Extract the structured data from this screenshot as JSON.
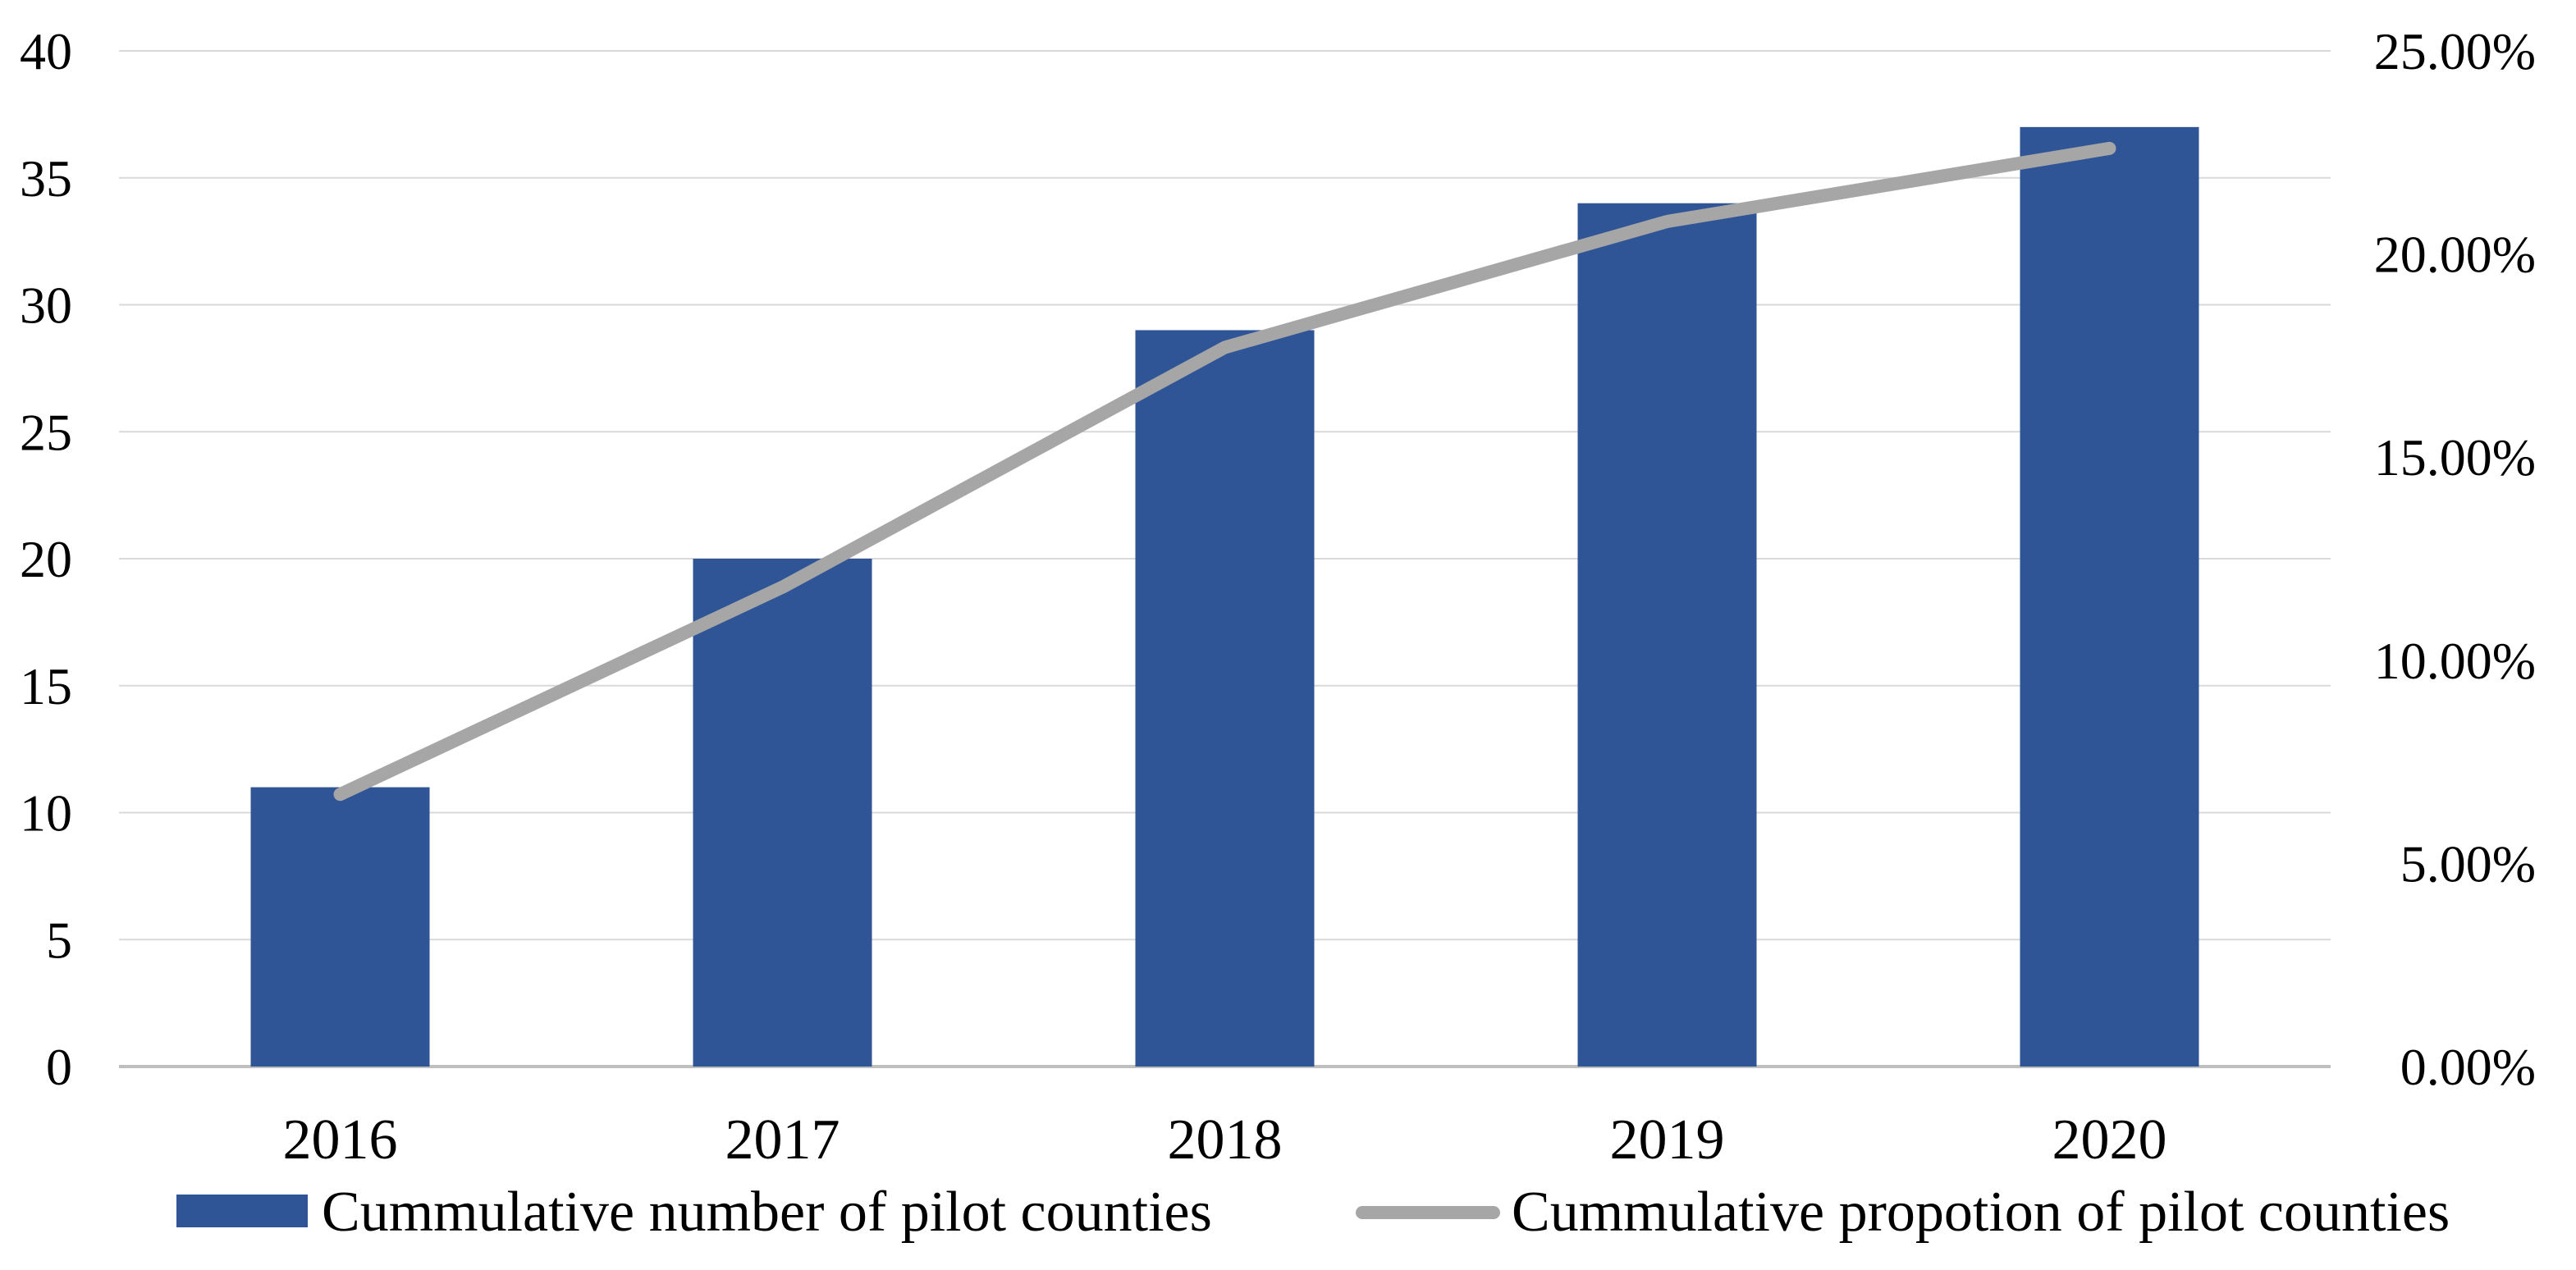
{
  "chart_data": {
    "type": "bar+line",
    "categories": [
      "2016",
      "2017",
      "2018",
      "2019",
      "2020"
    ],
    "series": [
      {
        "name": "Cummulative number of pilot counties",
        "kind": "bar",
        "axis": "left",
        "color": "#2F5597",
        "values": [
          11,
          20,
          29,
          34,
          37
        ]
      },
      {
        "name": "Cummulative propotion of pilot counties",
        "kind": "line",
        "axis": "right",
        "color": "#A6A6A6",
        "values": [
          6.7,
          11.8,
          17.7,
          20.8,
          22.6
        ]
      }
    ],
    "left_axis": {
      "ylim": [
        0,
        40
      ],
      "ticks": [
        0,
        5,
        10,
        15,
        20,
        25,
        30,
        35,
        40
      ],
      "tick_labels": [
        "0",
        "5",
        "10",
        "15",
        "20",
        "25",
        "30",
        "35",
        "40"
      ]
    },
    "right_axis": {
      "ylim": [
        0,
        25
      ],
      "ticks": [
        0,
        5,
        10,
        15,
        20,
        25
      ],
      "tick_labels": [
        "0.00%",
        "5.00%",
        "10.00%",
        "15.00%",
        "20.00%",
        "25.00%"
      ]
    },
    "grid": true,
    "legend_position": "bottom",
    "title": "",
    "xlabel": "",
    "ylabel": ""
  }
}
